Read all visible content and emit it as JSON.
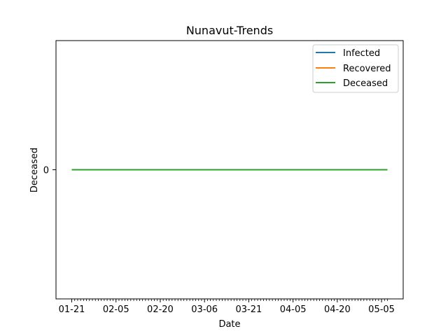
{
  "chart_data": {
    "type": "line",
    "title": "Nunavut-Trends",
    "xlabel": "Date",
    "ylabel": "Deceased",
    "x_start": "01-21",
    "x_end": "05-07",
    "x_tick_labels": [
      "01-21",
      "02-05",
      "02-20",
      "03-06",
      "03-21",
      "04-05",
      "04-20",
      "05-05"
    ],
    "y_tick_labels": [
      "0"
    ],
    "ylim": [
      -0.055,
      0.055
    ],
    "grid": false,
    "legend": "top-right",
    "series": [
      {
        "name": "Infected",
        "color": "#1f77b4",
        "values": [
          0,
          0
        ]
      },
      {
        "name": "Recovered",
        "color": "#ff7f0e",
        "values": [
          0,
          0
        ]
      },
      {
        "name": "Deceased",
        "color": "#2ca02c",
        "values": [
          0,
          0
        ]
      }
    ]
  }
}
